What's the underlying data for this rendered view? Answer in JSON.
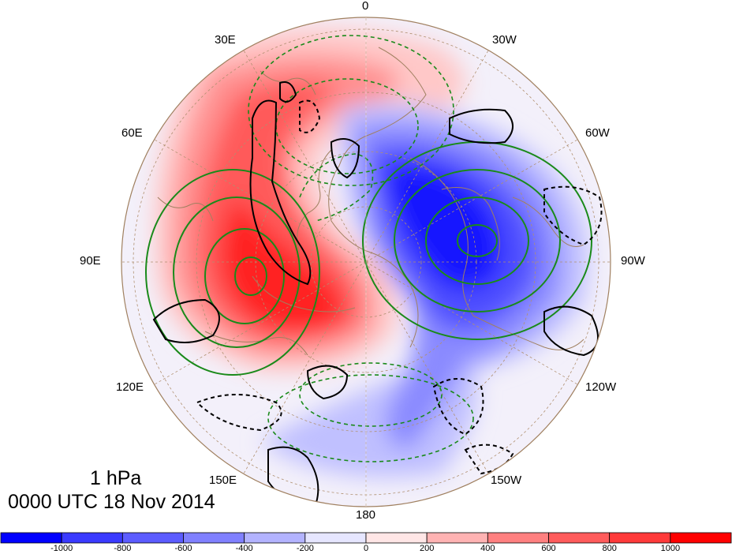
{
  "map": {
    "projection": "north polar stereographic",
    "level_label": "1 hPa",
    "datetime_label": "0000 UTC 18 Nov 2014",
    "longitude_labels": [
      "0",
      "30W",
      "60W",
      "90W",
      "120W",
      "150W",
      "180",
      "150E",
      "120E",
      "90E",
      "60E",
      "30E"
    ],
    "colors": {
      "positive": "#ff0000",
      "negative": "#0000ff",
      "solid_contour": "#000000",
      "green_contour": "#1a8a1a",
      "coastline": "#a08060"
    }
  },
  "colorbar": {
    "tick_labels": [
      "-1000",
      "-800",
      "-600",
      "-400",
      "-200",
      "0",
      "200",
      "400",
      "600",
      "800",
      "1000"
    ],
    "colors": [
      "#0000ff",
      "#3a3aff",
      "#5c5cff",
      "#8080ff",
      "#b3b3ff",
      "#e6e6ff",
      "#ffe6e6",
      "#ffb3b3",
      "#ff8080",
      "#ff5c5c",
      "#ff3a3a",
      "#ff0000"
    ]
  }
}
